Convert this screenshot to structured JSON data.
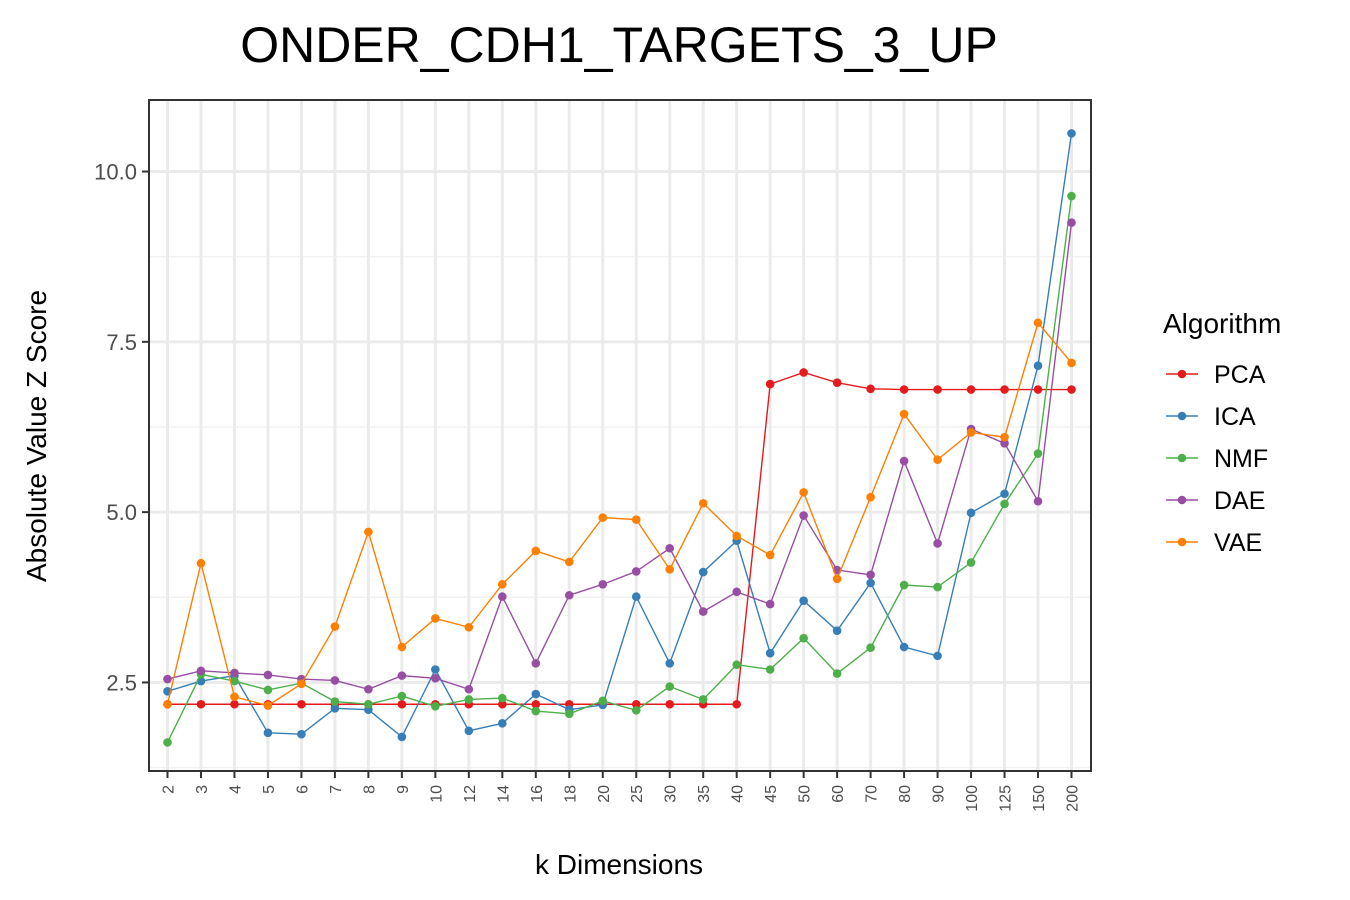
{
  "chart_data": {
    "type": "line",
    "title": "ONDER_CDH1_TARGETS_3_UP",
    "xlabel": "k Dimensions",
    "ylabel": "Absolute Value Z Score",
    "categories": [
      "2",
      "3",
      "4",
      "5",
      "6",
      "7",
      "8",
      "9",
      "10",
      "12",
      "14",
      "16",
      "18",
      "20",
      "25",
      "30",
      "35",
      "40",
      "45",
      "50",
      "60",
      "70",
      "80",
      "90",
      "100",
      "125",
      "150",
      "200"
    ],
    "ylim": [
      1.2,
      11.05
    ],
    "yticks": [
      2.5,
      5.0,
      7.5,
      10.0
    ],
    "ytick_labels": [
      "2.5",
      "5.0",
      "7.5",
      "10.0"
    ],
    "grid": true,
    "legend": {
      "title": "Algorithm",
      "placement": "right"
    },
    "series": [
      {
        "name": "PCA",
        "color": "#e41a1c",
        "values": [
          2.18,
          2.18,
          2.18,
          2.18,
          2.18,
          2.18,
          2.18,
          2.18,
          2.18,
          2.18,
          2.18,
          2.18,
          2.18,
          2.18,
          2.18,
          2.18,
          2.18,
          2.18,
          6.88,
          7.05,
          6.9,
          6.81,
          6.8,
          6.8,
          6.8,
          6.8,
          6.8,
          6.8
        ]
      },
      {
        "name": "ICA",
        "color": "#377eb8",
        "values": [
          2.37,
          2.52,
          2.6,
          1.76,
          1.74,
          2.12,
          2.1,
          1.7,
          2.69,
          1.79,
          1.9,
          2.33,
          2.1,
          2.17,
          3.76,
          2.78,
          4.12,
          4.58,
          2.93,
          3.7,
          3.26,
          3.96,
          3.02,
          2.89,
          4.99,
          5.27,
          7.15,
          10.56
        ]
      },
      {
        "name": "NMF",
        "color": "#4daf4a",
        "values": [
          1.62,
          2.62,
          2.52,
          2.39,
          2.49,
          2.22,
          2.18,
          2.3,
          2.15,
          2.25,
          2.27,
          2.08,
          2.04,
          2.23,
          2.09,
          2.44,
          2.25,
          2.76,
          2.69,
          3.15,
          2.63,
          3.01,
          3.93,
          3.9,
          4.26,
          5.12,
          5.86,
          9.64
        ]
      },
      {
        "name": "DAE",
        "color": "#984ea3",
        "values": [
          2.55,
          2.67,
          2.64,
          2.61,
          2.55,
          2.53,
          2.4,
          2.6,
          2.56,
          2.4,
          3.76,
          2.78,
          3.78,
          3.94,
          4.13,
          4.47,
          3.54,
          3.83,
          3.65,
          4.95,
          4.15,
          4.08,
          5.75,
          4.54,
          6.22,
          6.01,
          5.16,
          9.25
        ]
      },
      {
        "name": "VAE",
        "color": "#ff7f00",
        "values": [
          2.18,
          4.25,
          2.29,
          2.16,
          2.48,
          3.32,
          4.71,
          3.02,
          3.44,
          3.31,
          3.94,
          4.43,
          4.27,
          4.92,
          4.89,
          4.16,
          5.13,
          4.65,
          4.37,
          5.29,
          4.02,
          5.22,
          6.44,
          5.77,
          6.17,
          6.1,
          7.78,
          7.19
        ]
      }
    ]
  }
}
